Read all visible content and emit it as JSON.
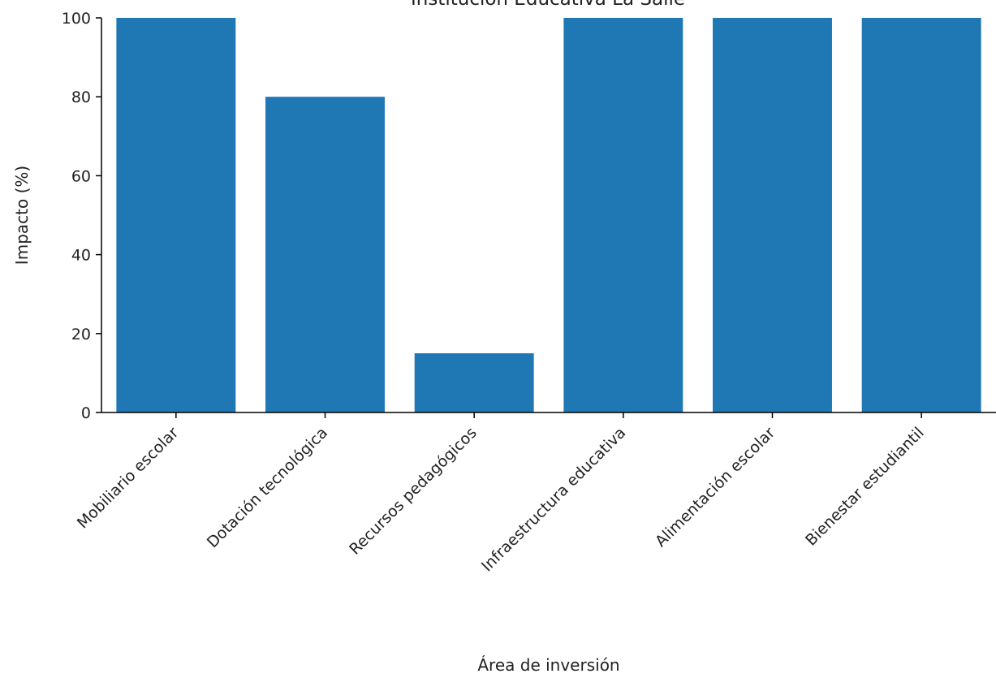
{
  "chart_data": {
    "type": "bar",
    "title": "Institución Educativa La Salle",
    "xlabel": "Área de inversión",
    "ylabel": "Impacto (%)",
    "categories": [
      "Mobiliario escolar",
      "Dotación tecnológica",
      "Recursos pedagógicos",
      "Infraestructura educativa",
      "Alimentación escolar",
      "Bienestar estudiantil"
    ],
    "values": [
      100,
      80,
      15,
      100,
      100,
      100
    ],
    "ylim": [
      0,
      100
    ],
    "yticks": [
      0,
      20,
      40,
      60,
      80,
      100
    ],
    "grid": false,
    "legend": "none",
    "bar_color": "#1f77b4",
    "axis_color": "#000000"
  }
}
